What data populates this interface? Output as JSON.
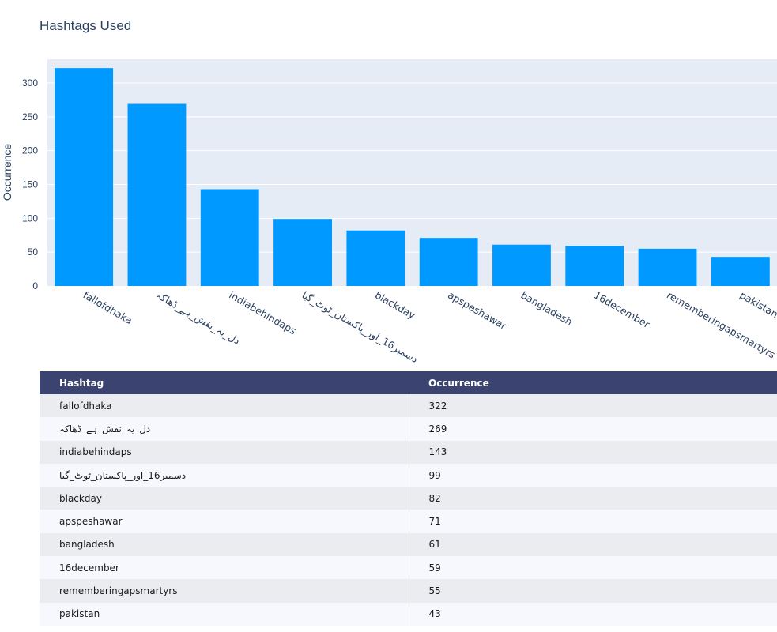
{
  "chart_data": {
    "type": "bar",
    "title": "Hashtags Used",
    "xlabel": "",
    "ylabel": "Occurrence",
    "ylim": [
      0,
      335
    ],
    "yticks": [
      0,
      50,
      100,
      150,
      200,
      250,
      300
    ],
    "categories": [
      "fallofdhaka",
      "دل_یہ_نقش_ہے_ڈھاکہ",
      "indiabehindaps",
      "دسمبر16_اور_پاکستان_ٹوٹ_گیا",
      "blackday",
      "apspeshawar",
      "bangladesh",
      "16december",
      "rememberingapsmartyrs",
      "pakistan"
    ],
    "values": [
      322,
      269,
      143,
      99,
      82,
      71,
      61,
      59,
      55,
      43
    ],
    "bar_color": "#0099ff",
    "plot_bg": "#e5ecf6",
    "grid": true
  },
  "table": {
    "headers": [
      "Hashtag",
      "Occurrence"
    ],
    "rows": [
      [
        "fallofdhaka",
        "322"
      ],
      [
        "دل_یہ_نقش_ہے_ڈھاکہ",
        "269"
      ],
      [
        "indiabehindaps",
        "143"
      ],
      [
        "دسمبر16_اور_پاکستان_ٹوٹ_گیا",
        "99"
      ],
      [
        "blackday",
        "82"
      ],
      [
        "apspeshawar",
        "71"
      ],
      [
        "bangladesh",
        "61"
      ],
      [
        "16december",
        "59"
      ],
      [
        "rememberingapsmartyrs",
        "55"
      ],
      [
        "pakistan",
        "43"
      ]
    ],
    "header_bg": "#3b4470",
    "row_bg_odd": "#ebecf0",
    "row_bg_even": "#f7f8fd"
  }
}
